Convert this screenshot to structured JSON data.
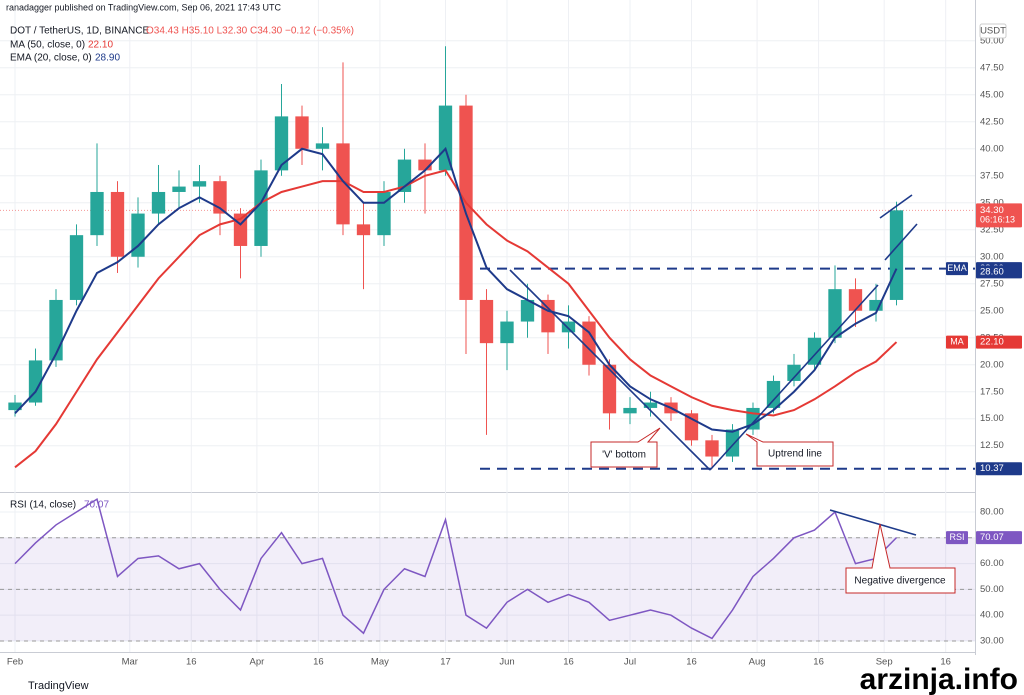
{
  "header": {
    "publisher": "ranadagger published on TradingView.com, Sep 06, 2021 17:43 UTC",
    "symbol": "DOT / TetherUS, 1D, BINANCE",
    "ohlc": "O34.43 H35.10 L32.30 C34.30 −0.12 (−0.35%)",
    "ma_label": "MA (50, close, 0)",
    "ma_value": "22.10",
    "ema_label": "EMA (20, close, 0)",
    "ema_value": "28.90",
    "currency": "USDT"
  },
  "chart_data": {
    "type": "candlestick",
    "x": [
      0,
      5,
      10,
      15,
      20,
      25,
      30,
      35,
      40,
      45,
      50,
      55,
      60,
      65,
      70,
      75,
      80,
      85,
      90,
      95,
      100,
      105,
      110,
      115,
      120,
      125,
      130,
      135,
      140,
      145,
      150,
      155,
      160,
      165,
      170,
      175,
      180,
      185,
      190,
      195,
      200,
      205,
      210,
      215
    ],
    "open": [
      15.8,
      16.5,
      20.4,
      26,
      32,
      36,
      30,
      34,
      36,
      36.5,
      37,
      34,
      31,
      38,
      43,
      40,
      40.5,
      33,
      32,
      36,
      39,
      38,
      44,
      26,
      22,
      24,
      26,
      23,
      24,
      20,
      15.5,
      16,
      16.5,
      15.5,
      13,
      11.5,
      14,
      16,
      18.5,
      20,
      22.5,
      27,
      25,
      26
    ],
    "high": [
      17.2,
      21.5,
      27,
      33,
      40.5,
      37,
      35.5,
      38.5,
      38,
      38.5,
      37.5,
      34.5,
      39,
      46,
      44,
      42,
      48,
      35,
      37,
      40,
      40.5,
      49.5,
      45,
      27,
      25,
      27.5,
      26.5,
      25.5,
      24.5,
      20.5,
      17,
      17.5,
      17,
      15.8,
      13.5,
      14.5,
      16.5,
      19,
      21,
      23,
      29.2,
      28,
      27.5,
      35.1
    ],
    "low": [
      15.2,
      16.2,
      19.8,
      25.5,
      31,
      28.5,
      29,
      33,
      34.5,
      35,
      32,
      28,
      30,
      37.5,
      38.5,
      38,
      32,
      27,
      31,
      35,
      34,
      37.5,
      21,
      13.5,
      19.5,
      22.5,
      21,
      21.5,
      19,
      14,
      14.5,
      15.2,
      14.8,
      12.5,
      10.37,
      11,
      13.5,
      15.5,
      18,
      19.5,
      22,
      23.5,
      24,
      25.5
    ],
    "close": [
      16.5,
      20.4,
      26,
      32,
      36,
      30,
      34,
      36,
      36.5,
      37,
      34,
      31,
      38,
      43,
      40,
      40.5,
      33,
      32,
      36,
      39,
      38,
      44,
      26,
      22,
      24,
      26,
      23,
      24,
      20,
      15.5,
      16,
      16.5,
      15.5,
      13,
      11.5,
      14,
      16,
      18.5,
      20,
      22.5,
      27,
      25,
      26,
      34.3
    ],
    "up_color": "#26a69a",
    "down_color": "#ef5350",
    "series": [
      {
        "name": "MA",
        "color": "#e53935",
        "values": [
          10.5,
          12,
          14.5,
          17.5,
          20.5,
          23,
          25.5,
          28,
          30,
          32,
          33,
          33.5,
          35,
          36,
          36.5,
          37,
          37,
          36,
          36,
          36.5,
          37.5,
          38,
          35,
          33,
          31.5,
          30.5,
          29,
          27.5,
          25,
          22.5,
          20.5,
          19,
          18,
          17,
          16.2,
          15.8,
          15.5,
          15.3,
          15.8,
          16.8,
          18,
          19.3,
          20.3,
          22.1
        ]
      },
      {
        "name": "EMA",
        "color": "#1e3a8a",
        "values": [
          15.5,
          17.5,
          21,
          25,
          28.5,
          29.5,
          31,
          33,
          34.5,
          35.5,
          34.5,
          33,
          35,
          38.5,
          40,
          39.5,
          37,
          35,
          35,
          36.5,
          38,
          40,
          34,
          29,
          27,
          26,
          25,
          24.5,
          23,
          20,
          18,
          16.8,
          16,
          15,
          14,
          13.8,
          14.5,
          15.8,
          17.5,
          19.5,
          22.5,
          23.8,
          24.8,
          28.9
        ]
      }
    ],
    "xlim": [
      -3.66,
      234.15
    ],
    "xticks": [
      {
        "value": 0,
        "label": "Feb"
      },
      {
        "value": 28,
        "label": "Mar"
      },
      {
        "value": 43,
        "label": "16"
      },
      {
        "value": 59,
        "label": "Apr"
      },
      {
        "value": 74,
        "label": "16"
      },
      {
        "value": 89,
        "label": "May"
      },
      {
        "value": 105,
        "label": "17"
      },
      {
        "value": 120,
        "label": "Jun"
      },
      {
        "value": 135,
        "label": "16"
      },
      {
        "value": 150,
        "label": "Jul"
      },
      {
        "value": 165,
        "label": "16"
      },
      {
        "value": 181,
        "label": "Aug"
      },
      {
        "value": 196,
        "label": "16"
      },
      {
        "value": 212,
        "label": "Sep"
      },
      {
        "value": 227,
        "label": "16"
      }
    ],
    "ylim": [
      8.4,
      51.0
    ],
    "yticks": [
      {
        "value": 12.5,
        "label": "12.50"
      },
      {
        "value": 15,
        "label": "15.00"
      },
      {
        "value": 17.5,
        "label": "17.50"
      },
      {
        "value": 20,
        "label": "20.00"
      },
      {
        "value": 22.5,
        "label": "22.50"
      },
      {
        "value": 25,
        "label": "25.00"
      },
      {
        "value": 27.5,
        "label": "27.50"
      },
      {
        "value": 30,
        "label": "30.00"
      },
      {
        "value": 32.5,
        "label": "32.50"
      },
      {
        "value": 35,
        "label": "35.00"
      },
      {
        "value": 37.5,
        "label": "37.50"
      },
      {
        "value": 40,
        "label": "40.00"
      },
      {
        "value": 42.5,
        "label": "42.50"
      },
      {
        "value": 45,
        "label": "45.00"
      },
      {
        "value": 47.5,
        "label": "47.50"
      },
      {
        "value": 50,
        "label": "50.00"
      }
    ],
    "levels": [
      28.9,
      10.37
    ],
    "price_tags": [
      {
        "name": "EMA",
        "value": 28.9,
        "label": "28.90",
        "color": "#1e3a8a"
      },
      {
        "value": 28.6,
        "label": "28.60",
        "color": "#1e3a8a"
      },
      {
        "name": "MA",
        "value": 22.1,
        "label": "22.10",
        "color": "#e53935"
      },
      {
        "value": 34.3,
        "label": "34.30",
        "sub": "06:16:13",
        "color": "#ef5350"
      },
      {
        "value": 10.37,
        "label": "10.37",
        "color": "#1e3a8a"
      }
    ],
    "annotations": [
      "'V' bottom",
      "Uptrend line",
      "Negative divergence"
    ],
    "rsi": {
      "label": "RSI (14, close)",
      "value_label": "70.07",
      "name": "RSI",
      "color": "#7e57c2",
      "values": [
        60,
        68,
        75,
        80,
        85,
        55,
        62,
        63,
        58,
        60,
        50,
        42,
        62,
        72,
        60,
        62,
        40,
        33,
        50,
        58,
        55,
        77,
        40,
        35,
        45,
        50,
        45,
        48,
        45,
        38,
        40,
        42,
        40,
        35,
        31,
        42,
        55,
        62,
        70,
        73,
        80,
        60,
        62,
        70.07
      ],
      "ylim": [
        26.5,
        86.6
      ],
      "yticks": [
        {
          "value": 30,
          "label": "30.00"
        },
        {
          "value": 40,
          "label": "40.00"
        },
        {
          "value": 50,
          "label": "50.00"
        },
        {
          "value": 60,
          "label": "60.00"
        },
        {
          "value": 70,
          "label": "70.00"
        },
        {
          "value": 80,
          "label": "80.00"
        }
      ],
      "levels": [
        70,
        50,
        30
      ]
    }
  },
  "footer": {
    "brand": "TradingView",
    "watermark": "arzinja.info"
  }
}
